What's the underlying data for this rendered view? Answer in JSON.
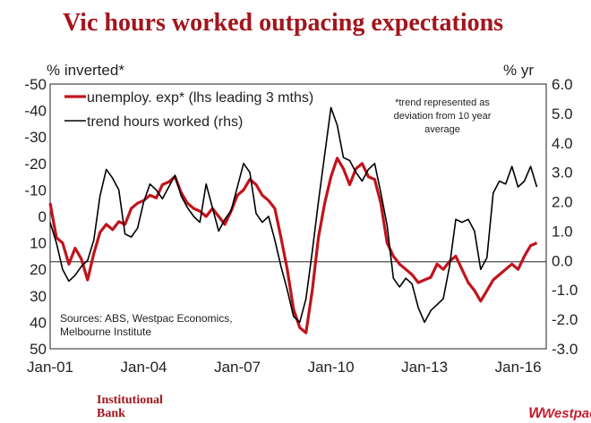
{
  "header": {
    "title": "Vic hours worked outpacing expectations"
  },
  "footer": {
    "brand_line1": "Institutional",
    "brand_line2": "Bank",
    "logo_text": "Westpac"
  },
  "colors": {
    "title": "#a3151c",
    "unemploy": "#c0141c",
    "hours": "#000000",
    "logo": "#c41f2e"
  },
  "chart_data": {
    "type": "line",
    "title": "Vic hours worked outpacing expectations",
    "left_axis_label": "% inverted*",
    "right_axis_label": "% yr",
    "left_ylim": [
      -50,
      50
    ],
    "left_ticks": [
      "-50",
      "-40",
      "-30",
      "-20",
      "-10",
      "0",
      "10",
      "20",
      "30",
      "40",
      "50"
    ],
    "right_ylim": [
      -3.0,
      6.0
    ],
    "right_ticks": [
      "6.0",
      "5.0",
      "4.0",
      "3.0",
      "2.0",
      "1.0",
      "0.0",
      "-1.0",
      "-2.0",
      "-3.0"
    ],
    "x_ticks": [
      "Jan-01",
      "Jan-04",
      "Jan-07",
      "Jan-10",
      "Jan-13",
      "Jan-16"
    ],
    "x_range": [
      2001.0,
      2016.9
    ],
    "note": [
      "*trend represented as",
      "deviation from 10 year",
      "average"
    ],
    "sources": [
      "Sources: ABS, Westpac Economics,",
      "Melbourne Institute"
    ],
    "series": [
      {
        "name": "unemploy. exp* (lhs leading 3 mths)",
        "axis": "left",
        "x": [
          2001.0,
          2001.2,
          2001.4,
          2001.6,
          2001.8,
          2002.0,
          2002.2,
          2002.4,
          2002.6,
          2002.8,
          2003.0,
          2003.2,
          2003.4,
          2003.6,
          2003.8,
          2004.0,
          2004.2,
          2004.4,
          2004.6,
          2004.8,
          2005.0,
          2005.2,
          2005.4,
          2005.6,
          2005.8,
          2006.0,
          2006.2,
          2006.4,
          2006.6,
          2006.8,
          2007.0,
          2007.2,
          2007.4,
          2007.6,
          2007.8,
          2008.0,
          2008.2,
          2008.4,
          2008.6,
          2008.8,
          2009.0,
          2009.2,
          2009.4,
          2009.6,
          2009.8,
          2010.0,
          2010.2,
          2010.4,
          2010.6,
          2010.8,
          2011.0,
          2011.2,
          2011.4,
          2011.6,
          2011.8,
          2012.0,
          2012.2,
          2012.4,
          2012.6,
          2012.8,
          2013.0,
          2013.2,
          2013.4,
          2013.6,
          2013.8,
          2014.0,
          2014.2,
          2014.4,
          2014.6,
          2014.8,
          2015.0,
          2015.2,
          2015.4,
          2015.6,
          2015.8,
          2016.0,
          2016.2,
          2016.4,
          2016.6
        ],
        "values": [
          -5,
          8,
          10,
          18,
          12,
          16,
          24,
          14,
          6,
          3,
          5,
          2,
          3,
          -3,
          -5,
          -6,
          -8,
          -7,
          -12,
          -13,
          -15,
          -9,
          -5,
          -3,
          -2,
          0,
          -3,
          0,
          3,
          -2,
          -8,
          -10,
          -14,
          -12,
          -8,
          -6,
          -3,
          8,
          20,
          35,
          42,
          44,
          28,
          8,
          -5,
          -15,
          -22,
          -18,
          -12,
          -18,
          -20,
          -15,
          -14,
          -5,
          10,
          15,
          18,
          20,
          22,
          25,
          24,
          23,
          18,
          20,
          17,
          15,
          20,
          25,
          28,
          32,
          28,
          24,
          22,
          20,
          18,
          20,
          15,
          11,
          10
        ],
        "color": "#c0141c"
      },
      {
        "name": "trend hours worked (rhs)",
        "axis": "right",
        "x": [
          2001.0,
          2001.2,
          2001.4,
          2001.6,
          2001.8,
          2002.0,
          2002.2,
          2002.4,
          2002.6,
          2002.8,
          2003.0,
          2003.2,
          2003.4,
          2003.6,
          2003.8,
          2004.0,
          2004.2,
          2004.4,
          2004.6,
          2004.8,
          2005.0,
          2005.2,
          2005.4,
          2005.6,
          2005.8,
          2006.0,
          2006.2,
          2006.4,
          2006.6,
          2006.8,
          2007.0,
          2007.2,
          2007.4,
          2007.6,
          2007.8,
          2008.0,
          2008.2,
          2008.4,
          2008.6,
          2008.8,
          2009.0,
          2009.2,
          2009.4,
          2009.6,
          2009.8,
          2010.0,
          2010.2,
          2010.4,
          2010.6,
          2010.8,
          2011.0,
          2011.2,
          2011.4,
          2011.6,
          2011.8,
          2012.0,
          2012.2,
          2012.4,
          2012.6,
          2012.8,
          2013.0,
          2013.2,
          2013.4,
          2013.6,
          2013.8,
          2014.0,
          2014.2,
          2014.4,
          2014.6,
          2014.8,
          2015.0,
          2015.2,
          2015.4,
          2015.6,
          2015.8,
          2016.0,
          2016.2,
          2016.4,
          2016.6
        ],
        "values": [
          1.3,
          0.6,
          -0.3,
          -0.7,
          -0.5,
          -0.2,
          0.0,
          0.7,
          2.2,
          3.1,
          2.8,
          2.4,
          0.9,
          0.8,
          1.1,
          2.0,
          2.6,
          2.4,
          2.1,
          2.5,
          2.9,
          2.2,
          1.8,
          1.5,
          1.3,
          2.6,
          1.8,
          1.0,
          1.4,
          1.7,
          2.5,
          3.3,
          3.0,
          1.6,
          1.3,
          1.5,
          0.7,
          -0.2,
          -1.0,
          -1.9,
          -2.1,
          -1.3,
          0.3,
          2.0,
          3.6,
          5.2,
          4.6,
          3.5,
          3.4,
          3.0,
          2.7,
          3.1,
          3.3,
          2.3,
          1.2,
          -0.6,
          -0.9,
          -0.6,
          -0.8,
          -1.6,
          -2.1,
          -1.7,
          -1.5,
          -1.3,
          -0.2,
          1.4,
          1.3,
          1.4,
          1.0,
          -0.3,
          0.1,
          2.3,
          2.7,
          2.6,
          3.2,
          2.5,
          2.7,
          3.2,
          2.5
        ],
        "color": "#000000"
      }
    ]
  }
}
